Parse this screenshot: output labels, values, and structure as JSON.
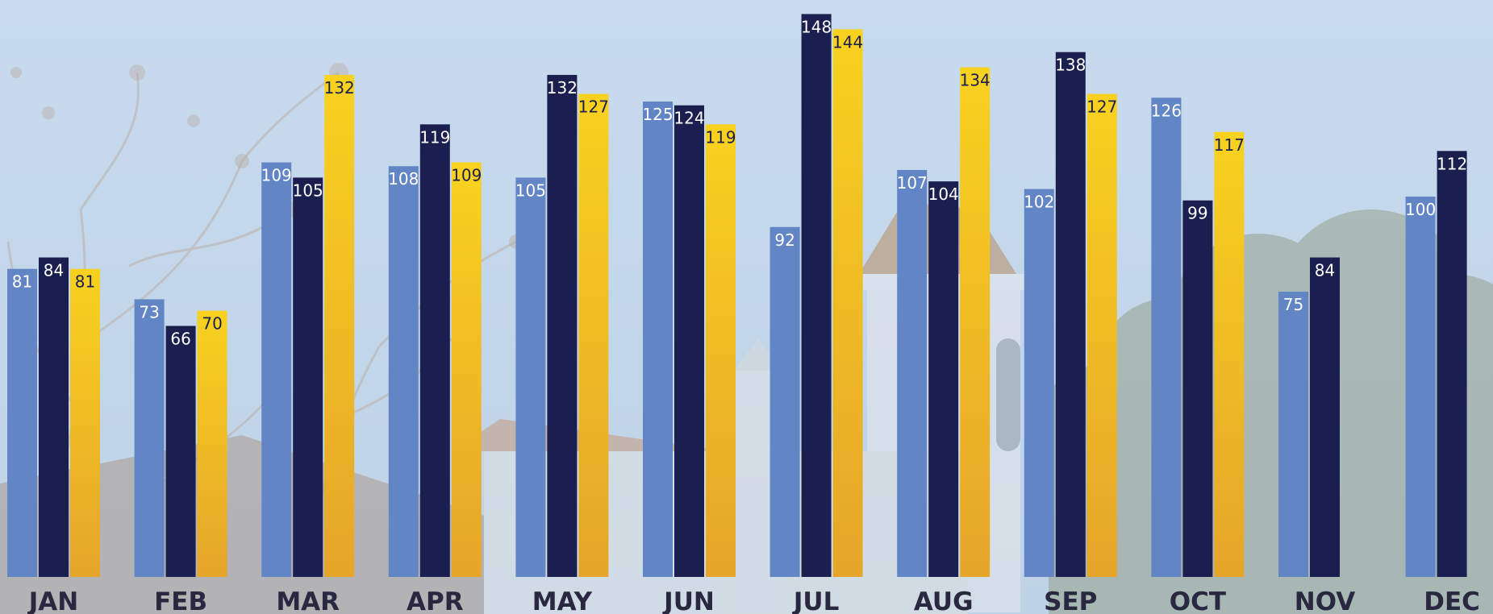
{
  "chart_data": {
    "type": "bar",
    "title": "",
    "xlabel": "",
    "ylabel": "",
    "ylim": [
      0,
      150
    ],
    "grid": false,
    "legend": "none",
    "categories": [
      "JAN",
      "FEB",
      "MAR",
      "APR",
      "MAY",
      "JUN",
      "JUL",
      "AUG",
      "SEP",
      "OCT",
      "NOV",
      "DEC"
    ],
    "series": [
      {
        "color": "#6285c5",
        "label_color": "#ffffff",
        "values": [
          81,
          73,
          109,
          108,
          105,
          125,
          92,
          107,
          102,
          126,
          75,
          100
        ]
      },
      {
        "color": "#1b1f4f",
        "label_color": "#ffffff",
        "values": [
          84,
          66,
          105,
          119,
          132,
          124,
          148,
          104,
          138,
          99,
          84,
          112
        ]
      },
      {
        "color": "#f8d21f",
        "color_bottom": "#e6a52a",
        "label_color": "#1b1f4f",
        "values": [
          81,
          70,
          132,
          109,
          127,
          119,
          144,
          134,
          127,
          117,
          null,
          null
        ]
      }
    ]
  }
}
